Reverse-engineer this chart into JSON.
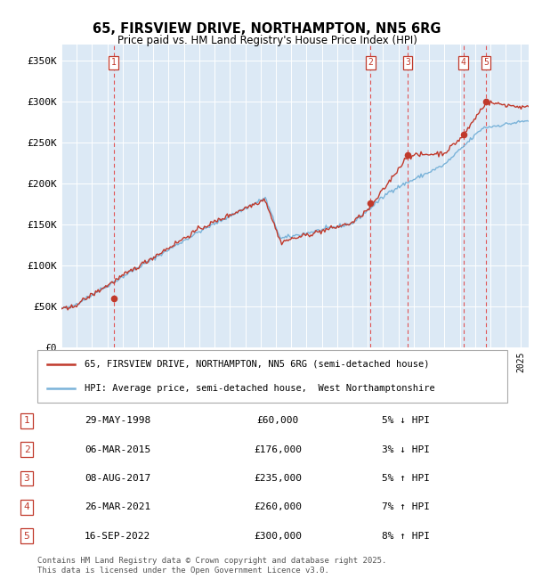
{
  "title": "65, FIRSVIEW DRIVE, NORTHAMPTON, NN5 6RG",
  "subtitle": "Price paid vs. HM Land Registry's House Price Index (HPI)",
  "background_color": "#ffffff",
  "plot_bg_color": "#dce9f5",
  "y_min": 0,
  "y_max": 370000,
  "y_ticks": [
    0,
    50000,
    100000,
    150000,
    200000,
    250000,
    300000,
    350000
  ],
  "y_tick_labels": [
    "£0",
    "£50K",
    "£100K",
    "£150K",
    "£200K",
    "£250K",
    "£300K",
    "£350K"
  ],
  "hpi_color": "#7ab3d9",
  "price_color": "#c0392b",
  "marker_color": "#c0392b",
  "vline_color": "#e05555",
  "sale_dates_x": [
    1998.41,
    2015.17,
    2017.6,
    2021.23,
    2022.71
  ],
  "sale_prices_y": [
    60000,
    176000,
    235000,
    260000,
    300000
  ],
  "sale_labels": [
    "1",
    "2",
    "3",
    "4",
    "5"
  ],
  "legend_line1": "65, FIRSVIEW DRIVE, NORTHAMPTON, NN5 6RG (semi-detached house)",
  "legend_line2": "HPI: Average price, semi-detached house,  West Northamptonshire",
  "table_data": [
    [
      "1",
      "29-MAY-1998",
      "£60,000",
      "5% ↓ HPI"
    ],
    [
      "2",
      "06-MAR-2015",
      "£176,000",
      "3% ↓ HPI"
    ],
    [
      "3",
      "08-AUG-2017",
      "£235,000",
      "5% ↑ HPI"
    ],
    [
      "4",
      "26-MAR-2021",
      "£260,000",
      "7% ↑ HPI"
    ],
    [
      "5",
      "16-SEP-2022",
      "£300,000",
      "8% ↑ HPI"
    ]
  ],
  "footer_text": "Contains HM Land Registry data © Crown copyright and database right 2025.\nThis data is licensed under the Open Government Licence v3.0."
}
